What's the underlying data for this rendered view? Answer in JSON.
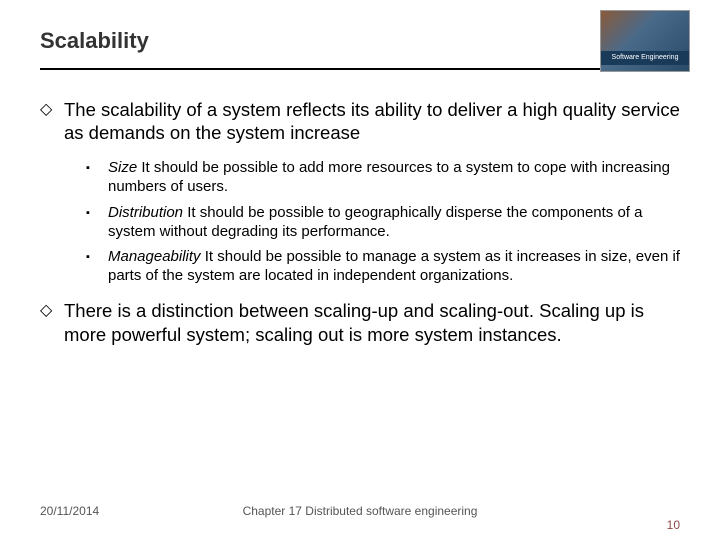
{
  "header": {
    "title": "Scalability",
    "corner_label": "Software Engineering"
  },
  "main": {
    "bullet_glyph": "◇",
    "sub_bullet_glyph": "▪",
    "item1": "The scalability of a system reflects its ability to deliver a high quality service as demands on the system increase",
    "subs": [
      {
        "label": "Size",
        "text": " It should be possible to add more resources to a system to cope with increasing numbers of users."
      },
      {
        "label": "Distribution",
        "text": " It should be possible to geographically disperse the components of a system without degrading its performance."
      },
      {
        "label": "Manageability",
        "text": " It should be possible to manage a system as it increases in size, even if parts of the system are located in independent organizations."
      }
    ],
    "item2": "There is a distinction between scaling-up and scaling-out. Scaling up is more powerful system; scaling out is more system instances."
  },
  "footer": {
    "date": "20/11/2014",
    "chapter": "Chapter 17 Distributed software engineering",
    "page": "10"
  }
}
